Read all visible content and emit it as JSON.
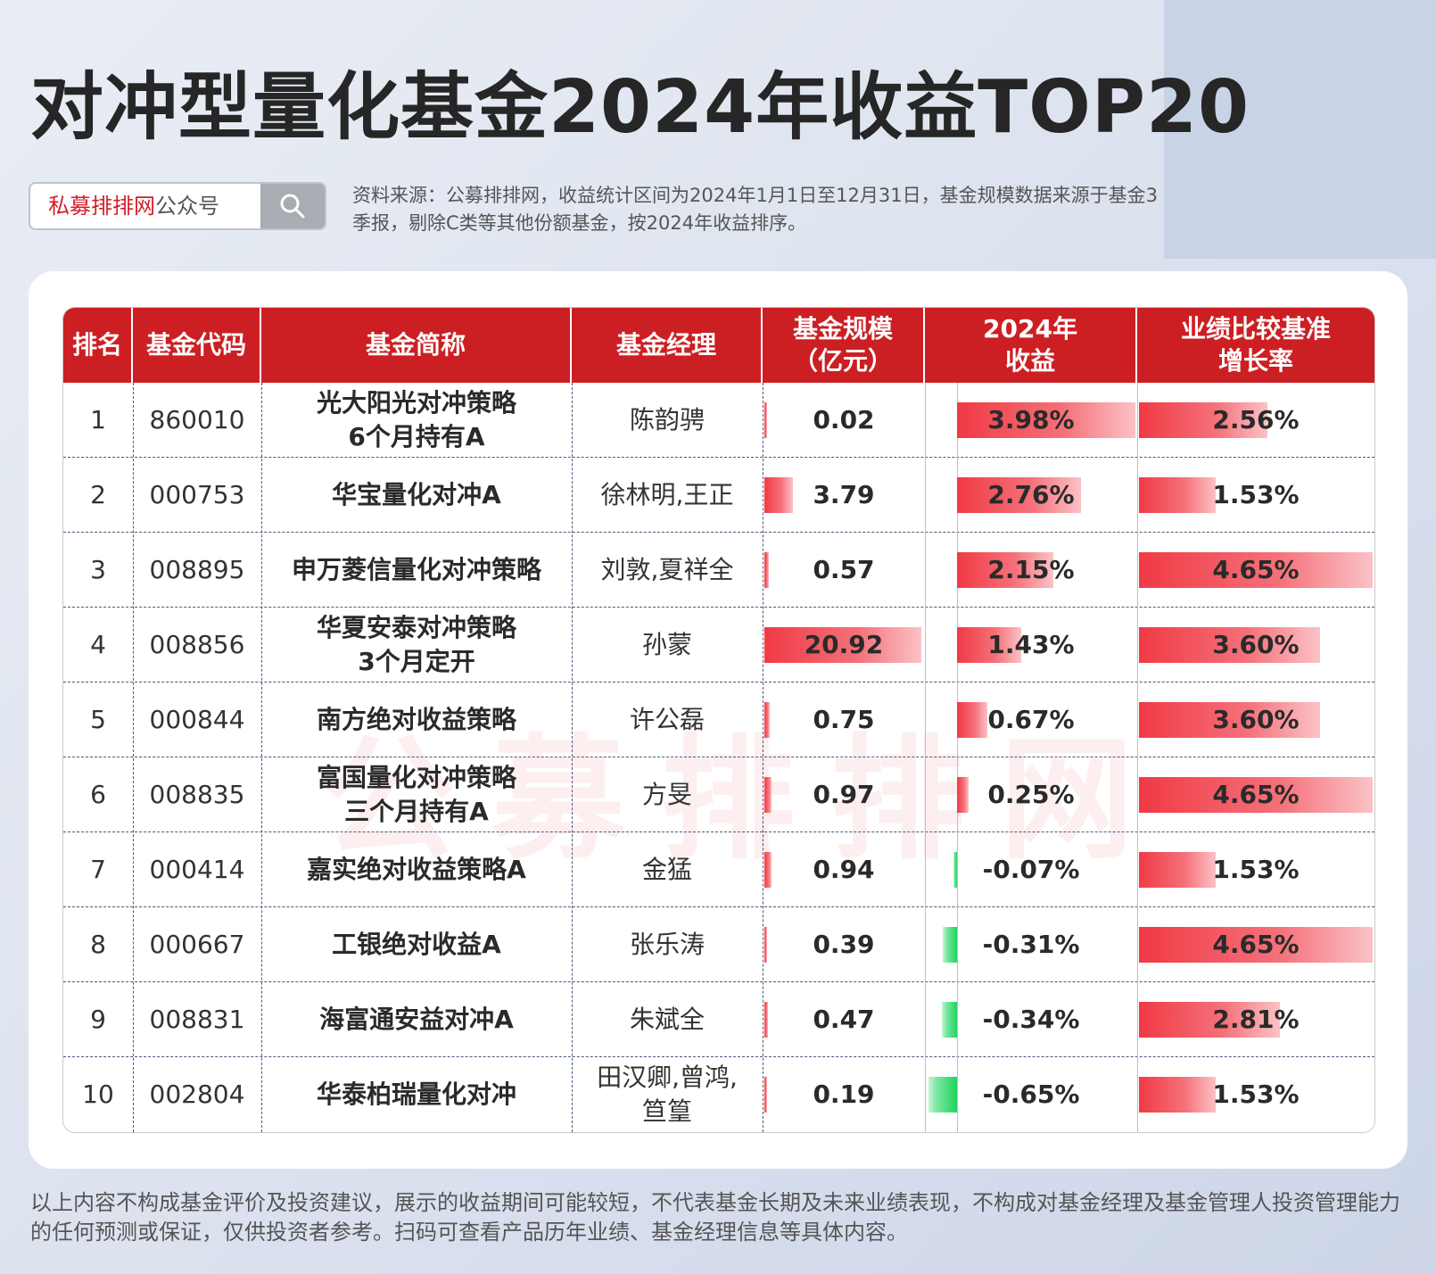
{
  "title": "对冲型量化基金2024年收益TOP20",
  "search": {
    "brand": "私募排排网",
    "suffix": "公众号",
    "icon": "search-icon"
  },
  "source_note": "资料来源：公募排排网，收益统计区间为2024年1月1日至12月31日，基金规模数据来源于基金3季报，剔除C类等其他份额基金，按2024年收益排序。",
  "watermark": "公募排排网",
  "colors": {
    "header_red": "#cc1f23",
    "bar_red": "#f03a44",
    "bar_green": "#1fd35e"
  },
  "table": {
    "headers": [
      "排名",
      "基金代码",
      "基金简称",
      "基金经理",
      "基金规模\n（亿元）",
      "2024年\n收益",
      "业绩比较基准\n增长率"
    ],
    "rows": [
      {
        "rank": "1",
        "code": "860010",
        "name": "光大阳光对冲策略\n6个月持有A",
        "manager": "陈韵骋",
        "scale": "0.02",
        "return": "3.98%",
        "benchmark": "2.56%"
      },
      {
        "rank": "2",
        "code": "000753",
        "name": "华宝量化对冲A",
        "manager": "徐林明,王正",
        "scale": "3.79",
        "return": "2.76%",
        "benchmark": "1.53%"
      },
      {
        "rank": "3",
        "code": "008895",
        "name": "申万菱信量化对冲策略",
        "manager": "刘敦,夏祥全",
        "scale": "0.57",
        "return": "2.15%",
        "benchmark": "4.65%"
      },
      {
        "rank": "4",
        "code": "008856",
        "name": "华夏安泰对冲策略\n3个月定开",
        "manager": "孙蒙",
        "scale": "20.92",
        "return": "1.43%",
        "benchmark": "3.60%"
      },
      {
        "rank": "5",
        "code": "000844",
        "name": "南方绝对收益策略",
        "manager": "许公磊",
        "scale": "0.75",
        "return": "0.67%",
        "benchmark": "3.60%"
      },
      {
        "rank": "6",
        "code": "008835",
        "name": "富国量化对冲策略\n三个月持有A",
        "manager": "方旻",
        "scale": "0.97",
        "return": "0.25%",
        "benchmark": "4.65%"
      },
      {
        "rank": "7",
        "code": "000414",
        "name": "嘉实绝对收益策略A",
        "manager": "金猛",
        "scale": "0.94",
        "return": "-0.07%",
        "benchmark": "1.53%"
      },
      {
        "rank": "8",
        "code": "000667",
        "name": "工银绝对收益A",
        "manager": "张乐涛",
        "scale": "0.39",
        "return": "-0.31%",
        "benchmark": "4.65%"
      },
      {
        "rank": "9",
        "code": "008831",
        "name": "海富通安益对冲A",
        "manager": "朱斌全",
        "scale": "0.47",
        "return": "-0.34%",
        "benchmark": "2.81%"
      },
      {
        "rank": "10",
        "code": "002804",
        "name": "华泰柏瑞量化对冲",
        "manager": "田汉卿,曾鸿,\n笪篁",
        "scale": "0.19",
        "return": "-0.65%",
        "benchmark": "1.53%"
      }
    ]
  },
  "disclaimer": "以上内容不构成基金评价及投资建议，展示的收益期间可能较短，不代表基金长期及未来业绩表现，不构成对基金经理及基金管理人投资管理能力的任何预测或保证，仅供投资者参考。扫码可查看产品历年业绩、基金经理信息等具体内容。"
}
